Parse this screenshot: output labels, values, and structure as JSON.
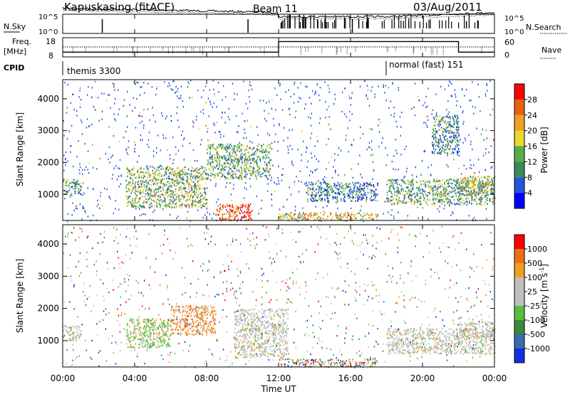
{
  "header": {
    "station": "Kapuskasing (fitACF)",
    "beam": "Beam 11",
    "date": "03/Aug/2011"
  },
  "status_panels": {
    "nsky_label": "N.Sky",
    "nsearch_label": "N.Search",
    "nsky_ticks": [
      "10^5",
      "10^0"
    ],
    "nsearch_ticks": [
      "10^5",
      "10^0"
    ],
    "freq_label_line1": "Freq.",
    "freq_label_line2": "[MHz]",
    "freq_ticks": [
      "18",
      "8"
    ],
    "nave_label": "Nave",
    "nave_ticks": [
      "60",
      "0"
    ],
    "cpid_label": "CPID",
    "cpid_segments": [
      {
        "label": "themis 3300",
        "start_hour": 0,
        "end_hour": 18
      },
      {
        "label": "normal (fast) 151",
        "start_hour": 18,
        "end_hour": 24
      }
    ],
    "freq_steps": [
      {
        "start_hour": 0,
        "end_hour": 12,
        "level": 0.25
      },
      {
        "start_hour": 12,
        "end_hour": 22,
        "level": 0.8
      },
      {
        "start_hour": 22,
        "end_hour": 24,
        "level": 0.25
      }
    ]
  },
  "chart_data": [
    {
      "type": "heatmap",
      "name": "power",
      "ylabel": "Slant Range [km]",
      "ylim": [
        180,
        4600
      ],
      "yticks": [
        "1000",
        "2000",
        "3000",
        "4000"
      ],
      "yticks_values": [
        1000,
        2000,
        3000,
        4000
      ],
      "colorbar_label": "Power [dB]",
      "colorbar_ticks": [
        "4",
        "8",
        "12",
        "16",
        "20",
        "24",
        "28"
      ],
      "colorbar_colors": [
        "#0000ff",
        "#2255dd",
        "#3a8a5a",
        "#55b04a",
        "#e8d830",
        "#f0a020",
        "#e86010",
        "#ff0000"
      ],
      "echo_regions": [
        {
          "t0": 0.0,
          "t1": 1.0,
          "r0": 1000,
          "r1": 1500,
          "level": 0.35
        },
        {
          "t0": 3.5,
          "t1": 8.0,
          "r0": 600,
          "r1": 1900,
          "level": 0.45
        },
        {
          "t0": 8.5,
          "t1": 10.5,
          "r0": 200,
          "r1": 700,
          "level": 0.85
        },
        {
          "t0": 8.0,
          "t1": 11.5,
          "r0": 1500,
          "r1": 2600,
          "level": 0.4
        },
        {
          "t0": 12.0,
          "t1": 17.5,
          "r0": 200,
          "r1": 450,
          "level": 0.6
        },
        {
          "t0": 13.5,
          "t1": 17.5,
          "r0": 800,
          "r1": 1400,
          "level": 0.3
        },
        {
          "t0": 18.0,
          "t1": 24.0,
          "r0": 700,
          "r1": 1500,
          "level": 0.4
        },
        {
          "t0": 20.5,
          "t1": 22.0,
          "r0": 2300,
          "r1": 3500,
          "level": 0.3
        },
        {
          "t0": 22.0,
          "t1": 24.0,
          "r0": 1000,
          "r1": 1600,
          "level": 0.5
        }
      ]
    },
    {
      "type": "heatmap",
      "name": "velocity",
      "ylabel": "Slant Range [km]",
      "xlabel": "Time UT",
      "xticks": [
        "00:00",
        "04:00",
        "08:00",
        "12:00",
        "16:00",
        "20:00",
        "00:00"
      ],
      "xticks_hours": [
        0,
        4,
        8,
        12,
        16,
        20,
        24
      ],
      "ylim": [
        180,
        4600
      ],
      "yticks": [
        "1000",
        "2000",
        "3000",
        "4000"
      ],
      "yticks_values": [
        1000,
        2000,
        3000,
        4000
      ],
      "colorbar_label": "Velocity [m s",
      "colorbar_label_sup": "-1",
      "colorbar_label_end": "]",
      "colorbar_ticks": [
        "1000",
        "500",
        "100",
        "25",
        "-25",
        "-100",
        "-500",
        "-1000"
      ],
      "colorbar_colors": [
        "#1030e0",
        "#3a6ab0",
        "#3a8a3a",
        "#55c040",
        "#c0c0c0",
        "#c0c0c0",
        "#f0a020",
        "#f07010",
        "#ff0000"
      ],
      "echo_regions": [
        {
          "t0": 0.0,
          "t1": 1.0,
          "r0": 1000,
          "r1": 1500,
          "kind": "gray"
        },
        {
          "t0": 3.5,
          "t1": 6.0,
          "r0": 800,
          "r1": 1700,
          "kind": "green"
        },
        {
          "t0": 6.0,
          "t1": 8.5,
          "r0": 1200,
          "r1": 2100,
          "kind": "orange"
        },
        {
          "t0": 9.5,
          "t1": 12.5,
          "r0": 500,
          "r1": 2000,
          "kind": "gray"
        },
        {
          "t0": 12.0,
          "t1": 17.5,
          "r0": 200,
          "r1": 450,
          "kind": "mixed"
        },
        {
          "t0": 18.0,
          "t1": 24.0,
          "r0": 600,
          "r1": 1400,
          "kind": "gray"
        },
        {
          "t0": 22.0,
          "t1": 24.0,
          "r0": 1100,
          "r1": 1600,
          "kind": "gray"
        }
      ]
    }
  ]
}
